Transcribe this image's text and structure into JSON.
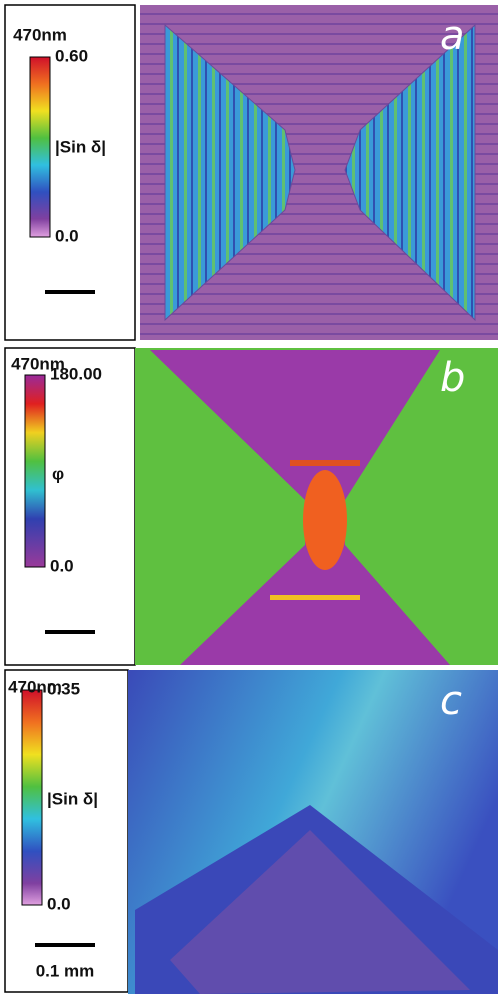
{
  "panels": [
    {
      "wavelength": "470nm",
      "max": "0.60",
      "quantity": "|Sin δ|",
      "min": "0.0",
      "letter": "a"
    },
    {
      "wavelength": "470nm",
      "max": "180.00",
      "quantity": "φ",
      "min": "0.0",
      "letter": "b"
    },
    {
      "wavelength": "470nm",
      "max": "0.35",
      "quantity": "|Sin δ|",
      "min": "0.0",
      "letter": "c",
      "scale": "0.1 mm"
    }
  ]
}
